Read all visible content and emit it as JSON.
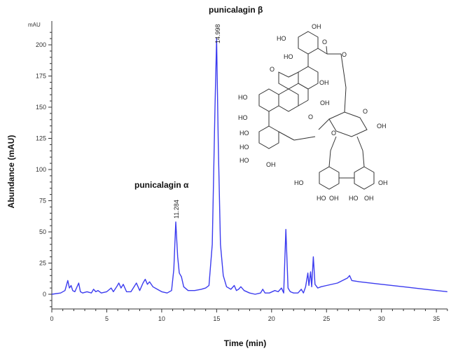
{
  "chart_data": {
    "type": "line",
    "title": "",
    "xlabel": "Time (min)",
    "ylabel": "Abundance (mAU)",
    "y_unit_label": "mAU",
    "xlim": [
      0,
      36
    ],
    "ylim": [
      -12,
      215
    ],
    "x_ticks": [
      0,
      5,
      10,
      15,
      20,
      25,
      30,
      35
    ],
    "x_tick_labels": [
      "0",
      "5",
      "10",
      "15",
      "20",
      "25",
      "30",
      "35"
    ],
    "y_ticks": [
      0,
      25,
      50,
      75,
      100,
      125,
      150,
      175,
      200
    ],
    "y_tick_labels": [
      "0",
      "25",
      "50",
      "75",
      "100",
      "125",
      "150",
      "175",
      "200"
    ],
    "grid": false,
    "legend": null,
    "series": [
      {
        "name": "chromatogram",
        "color": "#3b3bef",
        "x": [
          0,
          0.8,
          1.2,
          1.45,
          1.6,
          1.75,
          1.9,
          2.1,
          2.45,
          2.6,
          2.8,
          3.2,
          3.6,
          3.8,
          4.0,
          4.2,
          4.5,
          5.0,
          5.4,
          5.6,
          5.9,
          6.1,
          6.3,
          6.5,
          6.8,
          7.2,
          7.7,
          8.0,
          8.3,
          8.5,
          8.7,
          8.9,
          9.2,
          9.6,
          10.0,
          10.5,
          10.9,
          11.1,
          11.284,
          11.45,
          11.6,
          11.8,
          12.0,
          12.4,
          13.0,
          13.6,
          14.0,
          14.3,
          14.6,
          14.85,
          14.998,
          15.15,
          15.35,
          15.6,
          15.9,
          16.3,
          16.6,
          16.8,
          17.0,
          17.2,
          17.5,
          18.0,
          18.5,
          19.0,
          19.2,
          19.4,
          19.8,
          20.3,
          20.6,
          20.9,
          21.1,
          21.3,
          21.5,
          21.7,
          22.0,
          22.4,
          22.7,
          22.9,
          23.1,
          23.3,
          23.4,
          23.55,
          23.65,
          23.8,
          23.95,
          24.2,
          24.5,
          25.0,
          26.0,
          26.9,
          27.1,
          27.3,
          28.0,
          30.0,
          32.0,
          34.0,
          36.0
        ],
        "values": [
          0,
          1,
          3,
          11,
          5,
          7,
          3,
          2,
          9,
          2,
          1,
          2,
          1,
          4,
          2,
          3,
          1,
          2,
          5,
          2,
          6,
          9,
          5,
          8,
          2,
          2,
          9,
          3,
          9,
          12,
          8,
          10,
          6,
          4,
          2,
          1,
          3,
          20,
          58,
          30,
          17,
          14,
          6,
          3,
          3,
          4,
          5,
          7,
          40,
          150,
          205,
          120,
          40,
          15,
          6,
          4,
          7,
          3,
          4,
          6,
          3,
          1,
          0,
          1,
          4,
          1,
          1,
          3,
          2,
          5,
          1,
          52,
          5,
          2,
          1,
          1,
          4,
          1,
          6,
          17,
          7,
          18,
          6,
          30,
          8,
          5,
          6,
          7,
          9,
          13,
          15,
          11,
          10,
          8,
          6,
          4,
          2
        ]
      }
    ],
    "annotations": [
      {
        "text": "punicalagin α",
        "x": 11.284,
        "y": 58,
        "type": "compound"
      },
      {
        "text": "punicalagin β",
        "x": 14.998,
        "y": 205,
        "type": "compound"
      }
    ],
    "peak_labels": [
      {
        "text": "11.284",
        "x": 11.284,
        "y": 58
      },
      {
        "text": "14.998",
        "x": 14.998,
        "y": 205
      }
    ],
    "inset": "chemical structure of punicalagin (ellagitannin with glucose core, HO/OH groups)"
  },
  "structure_labels": {
    "oh": "OH",
    "ho": "HO",
    "o": "O",
    "oh_alpha": "OH"
  },
  "colors": {
    "trace": "#3b3bef",
    "axis": "#333333",
    "text": "#111111"
  }
}
